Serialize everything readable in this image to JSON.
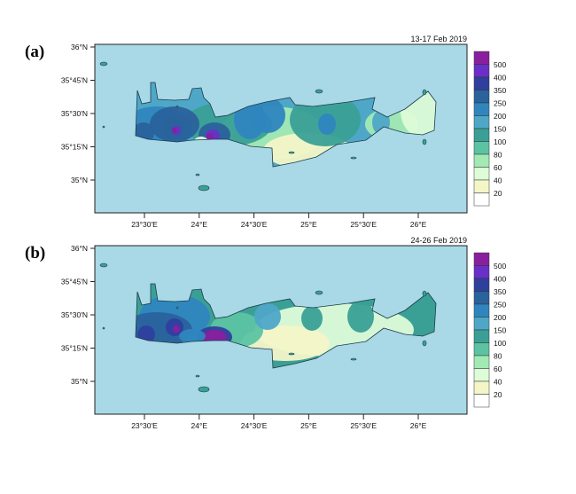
{
  "panels": [
    {
      "label": "(a)",
      "date": "13-17 Feb 2019"
    },
    {
      "label": "(b)",
      "date": "24-26 Feb 2019"
    }
  ],
  "lat_ticks": [
    "36°N",
    "35°45'N",
    "35°30'N",
    "35°15'N",
    "35°N"
  ],
  "lon_ticks": [
    "23°30'E",
    "24°E",
    "24°30'E",
    "25°E",
    "25°30'E",
    "26°E"
  ],
  "colorbar": {
    "labels": [
      "500",
      "400",
      "350",
      "250",
      "200",
      "150",
      "100",
      "80",
      "60",
      "40",
      "20"
    ],
    "colors": [
      "#8a1f9e",
      "#6a2fc8",
      "#2f3f9e",
      "#2a629c",
      "#2f86bf",
      "#4fa7c8",
      "#3aa096",
      "#5cc3a2",
      "#a2eab4",
      "#ddfcd8",
      "#f4f6c8",
      "#ffffff"
    ]
  },
  "colors": {
    "sea": "#a9d8e6",
    "coast": "#1d3b4a"
  }
}
